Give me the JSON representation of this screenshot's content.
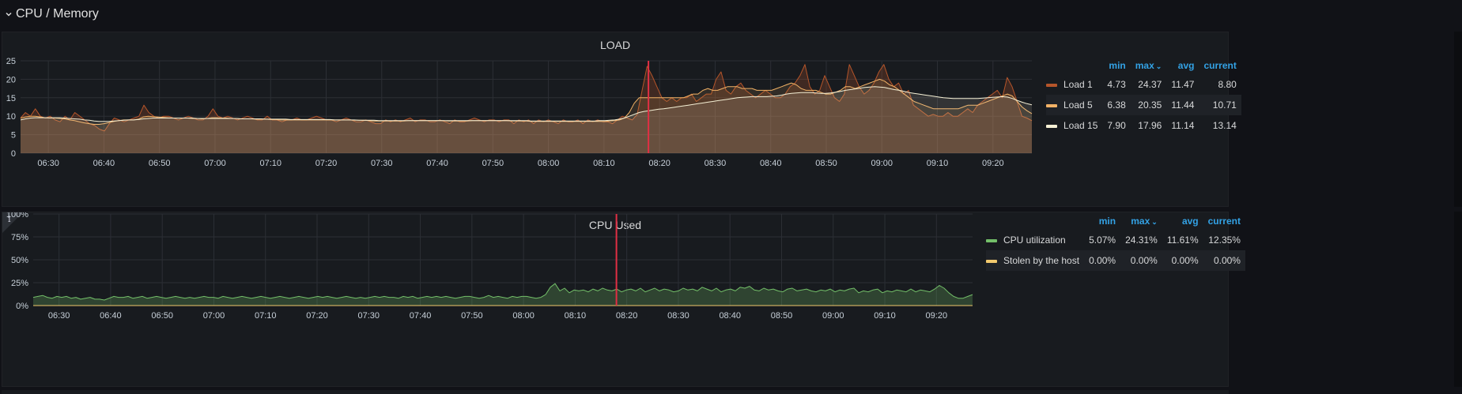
{
  "row": {
    "title": "CPU / Memory"
  },
  "panels": {
    "load": {
      "title": "LOAD",
      "y_ticks": [
        "25",
        "20",
        "15",
        "10",
        "5",
        "0"
      ],
      "x_ticks": [
        "06:30",
        "06:40",
        "06:50",
        "07:00",
        "07:10",
        "07:20",
        "07:30",
        "07:40",
        "07:50",
        "08:00",
        "08:10",
        "08:20",
        "08:30",
        "08:40",
        "08:50",
        "09:00",
        "09:10",
        "09:20"
      ],
      "legend": {
        "headers": {
          "min": "min",
          "max": "max",
          "avg": "avg",
          "current": "current"
        },
        "rows": [
          {
            "name": "Load 1",
            "color": "#b5552a",
            "min": "4.73",
            "max": "24.37",
            "avg": "11.47",
            "current": "8.80"
          },
          {
            "name": "Load 5",
            "color": "#f2b266",
            "min": "6.38",
            "max": "20.35",
            "avg": "11.44",
            "current": "10.71"
          },
          {
            "name": "Load 15",
            "color": "#f5f0d5",
            "min": "7.90",
            "max": "17.96",
            "avg": "11.14",
            "current": "13.14"
          }
        ]
      }
    },
    "cpu": {
      "title": "CPU Used",
      "info_icon": "info-icon",
      "y_ticks": [
        "100%",
        "75%",
        "50%",
        "25%",
        "0%"
      ],
      "x_ticks": [
        "06:30",
        "06:40",
        "06:50",
        "07:00",
        "07:10",
        "07:20",
        "07:30",
        "07:40",
        "07:50",
        "08:00",
        "08:10",
        "08:20",
        "08:30",
        "08:40",
        "08:50",
        "09:00",
        "09:10",
        "09:20"
      ],
      "legend": {
        "headers": {
          "min": "min",
          "max": "max",
          "avg": "avg",
          "current": "current"
        },
        "rows": [
          {
            "name": "CPU utilization",
            "color": "#73bf69",
            "min": "5.07%",
            "max": "24.31%",
            "avg": "11.61%",
            "current": "12.35%"
          },
          {
            "name": "Stolen by the host",
            "color": "#f2c96d",
            "min": "0.00%",
            "max": "0.00%",
            "avg": "0.00%",
            "current": "0.00%"
          }
        ]
      }
    }
  },
  "chart_data": [
    {
      "type": "line",
      "title": "LOAD",
      "x_start": "06:25",
      "x_end": "09:27",
      "ylim": [
        0,
        25
      ],
      "annotation_time": "08:18",
      "series": [
        {
          "name": "Load 1",
          "color": "#b5552a",
          "values": [
            9.5,
            11,
            10,
            12,
            10,
            9.5,
            10,
            9,
            8.5,
            10,
            9,
            11,
            10,
            9,
            8,
            7.5,
            6.5,
            6,
            8,
            9.5,
            9,
            8.5,
            9,
            9.5,
            10,
            13,
            11,
            10,
            9.5,
            10,
            10,
            9.5,
            9,
            9.5,
            10,
            9.5,
            9,
            9,
            10,
            12,
            10,
            9.5,
            10,
            9.5,
            9,
            9.5,
            10,
            9.5,
            9,
            9,
            10,
            9,
            9,
            8.5,
            9,
            9,
            9.5,
            9,
            9,
            9.5,
            10,
            9.5,
            9,
            9,
            8.5,
            9,
            9.5,
            9,
            8.5,
            8.5,
            9,
            8.5,
            8,
            8,
            9,
            8.5,
            9,
            8.5,
            9,
            9.5,
            8.5,
            9,
            9,
            8.5,
            8.5,
            9,
            8.5,
            8,
            9,
            8.5,
            8.5,
            9,
            9.5,
            9,
            8.5,
            9,
            9,
            8.5,
            9,
            9,
            8,
            9,
            8.5,
            9,
            8,
            9,
            8.5,
            9,
            8.5,
            8,
            9,
            8.5,
            8.5,
            9,
            8,
            9,
            8.5,
            9,
            8.5,
            8.5,
            8,
            9,
            10,
            9.5,
            9,
            10.5,
            17,
            23.5,
            21,
            18,
            15,
            14,
            15,
            14,
            15,
            15,
            16,
            14,
            15,
            16,
            16,
            20,
            22,
            17,
            16,
            18,
            19,
            17,
            16,
            15,
            16,
            17,
            16,
            15,
            15,
            16,
            18,
            19,
            21,
            24,
            18,
            16,
            17,
            21,
            18,
            15,
            14,
            16,
            24,
            21,
            18,
            16,
            17,
            19,
            22,
            24,
            20,
            18,
            19,
            16,
            17,
            13,
            12,
            11,
            10,
            10.5,
            10,
            10,
            11,
            10,
            10,
            11,
            12,
            11,
            13,
            14,
            15,
            16,
            17,
            15,
            20.5,
            18,
            14,
            10,
            9.5,
            8.8
          ]
        },
        {
          "name": "Load 5",
          "color": "#f2b266",
          "values": [
            9.5,
            9.8,
            10,
            10,
            9.8,
            9.6,
            9.5,
            9.5,
            9.4,
            9.3,
            9,
            8.8,
            8.5,
            8.2,
            8,
            7.8,
            7.8,
            8,
            8.3,
            8.6,
            8.8,
            9,
            9,
            9,
            9.2,
            9.8,
            10,
            9.9,
            9.8,
            9.7,
            9.6,
            9.5,
            9.5,
            9.5,
            9.5,
            9.4,
            9.4,
            9.3,
            9.4,
            9.6,
            9.6,
            9.5,
            9.5,
            9.4,
            9.4,
            9.3,
            9.3,
            9.3,
            9.2,
            9.2,
            9.2,
            9.1,
            9.1,
            9,
            9,
            9,
            9,
            9,
            9,
            9,
            9,
            9,
            9,
            9,
            9,
            9,
            9,
            9,
            8.9,
            8.9,
            8.9,
            8.8,
            8.7,
            8.7,
            8.7,
            8.7,
            8.7,
            8.7,
            8.7,
            8.8,
            8.8,
            8.8,
            8.8,
            8.8,
            8.8,
            8.8,
            8.8,
            8.7,
            8.7,
            8.7,
            8.7,
            8.7,
            8.8,
            8.8,
            8.8,
            8.8,
            8.8,
            8.8,
            8.8,
            8.8,
            8.7,
            8.7,
            8.7,
            8.7,
            8.6,
            8.6,
            8.6,
            8.6,
            8.6,
            8.6,
            8.6,
            8.6,
            8.6,
            8.6,
            8.6,
            8.6,
            8.6,
            8.6,
            8.6,
            8.6,
            8.7,
            8.8,
            9,
            9.5,
            11,
            13.5,
            15,
            15,
            15,
            15,
            15,
            15,
            15,
            15,
            15,
            15,
            15.5,
            16,
            16,
            17,
            17.5,
            17,
            17,
            17.5,
            18,
            18,
            18,
            17.5,
            17.5,
            17.5,
            17,
            17,
            17,
            17,
            17.5,
            18,
            18.5,
            19,
            18.5,
            17.5,
            17,
            17,
            17,
            16.5,
            16,
            16,
            16.5,
            17,
            18,
            18,
            17.5,
            18,
            18.5,
            19,
            19.5,
            20,
            19.5,
            18.5,
            18,
            17,
            16,
            15,
            14,
            13.5,
            13,
            12.5,
            12,
            12,
            12,
            12,
            12,
            12,
            12.5,
            13,
            13,
            13,
            13.5,
            14,
            14.5,
            15,
            15.5,
            16,
            15.5,
            14,
            12.5,
            11.5,
            10.7
          ]
        },
        {
          "name": "Load 15",
          "color": "#f5f0d5",
          "values": [
            9,
            9.3,
            9.5,
            9.6,
            9.6,
            9.6,
            9.6,
            9.6,
            9.6,
            9.5,
            9.4,
            9.3,
            9.2,
            9,
            8.9,
            8.7,
            8.6,
            8.6,
            8.6,
            8.7,
            8.8,
            8.9,
            9,
            9,
            9.1,
            9.3,
            9.4,
            9.5,
            9.5,
            9.5,
            9.5,
            9.5,
            9.5,
            9.5,
            9.5,
            9.5,
            9.4,
            9.4,
            9.4,
            9.4,
            9.4,
            9.4,
            9.4,
            9.4,
            9.4,
            9.3,
            9.3,
            9.3,
            9.3,
            9.3,
            9.2,
            9.2,
            9.2,
            9.2,
            9.2,
            9.1,
            9.1,
            9.1,
            9.1,
            9.1,
            9.1,
            9.1,
            9.1,
            9.1,
            9,
            9,
            9,
            9,
            9,
            8.9,
            8.9,
            8.9,
            8.9,
            8.8,
            8.8,
            8.8,
            8.8,
            8.8,
            8.8,
            8.8,
            8.8,
            8.8,
            8.8,
            8.8,
            8.8,
            8.8,
            8.8,
            8.8,
            8.8,
            8.8,
            8.8,
            8.8,
            8.8,
            8.8,
            8.8,
            8.8,
            8.8,
            8.8,
            8.8,
            8.8,
            8.8,
            8.8,
            8.8,
            8.8,
            8.7,
            8.7,
            8.7,
            8.7,
            8.7,
            8.7,
            8.7,
            8.7,
            8.7,
            8.7,
            8.7,
            8.7,
            8.7,
            8.7,
            8.8,
            8.8,
            8.9,
            9,
            9.2,
            9.5,
            10,
            10.5,
            11,
            11.3,
            11.5,
            11.7,
            11.9,
            12,
            12.2,
            12.4,
            12.6,
            12.8,
            13,
            13.2,
            13.4,
            13.6,
            13.8,
            14,
            14.2,
            14.4,
            14.6,
            14.8,
            15,
            15.1,
            15.2,
            15.3,
            15.3,
            15.3,
            15.3,
            15.4,
            15.5,
            15.7,
            16,
            16.2,
            16.3,
            16.4,
            16.4,
            16.4,
            16.3,
            16.2,
            16.2,
            16.3,
            16.5,
            16.7,
            17,
            17.2,
            17.4,
            17.6,
            17.8,
            17.9,
            18,
            17.9,
            17.8,
            17.5,
            17.2,
            17,
            16.7,
            16.4,
            16.2,
            16,
            15.8,
            15.6,
            15.4,
            15.2,
            15,
            14.9,
            14.8,
            14.8,
            14.8,
            14.8,
            14.8,
            14.8,
            14.9,
            15,
            15.1,
            15.2,
            15.3,
            15.2,
            14.8,
            14.3,
            13.8,
            13.4,
            13.1
          ]
        }
      ]
    },
    {
      "type": "line",
      "title": "CPU Used",
      "x_start": "06:25",
      "x_end": "09:27",
      "ylim": [
        0,
        100
      ],
      "annotation_time": "08:18",
      "series": [
        {
          "name": "CPU utilization",
          "color": "#73bf69",
          "values": [
            9,
            10,
            11,
            9,
            8,
            10,
            9,
            10,
            8,
            9,
            7,
            8,
            9,
            7,
            7,
            6,
            8,
            10,
            9,
            9,
            10,
            8,
            9,
            10,
            8,
            9,
            10,
            9,
            8,
            9,
            10,
            9,
            8,
            9,
            8,
            9,
            10,
            9,
            9,
            8,
            10,
            9,
            8,
            9,
            10,
            9,
            8,
            9,
            10,
            9,
            8,
            9,
            10,
            9,
            8,
            9,
            10,
            9,
            8,
            9,
            10,
            9,
            10,
            9,
            8,
            9,
            10,
            9,
            8,
            9,
            8,
            9,
            10,
            9,
            10,
            9,
            9,
            8,
            10,
            9,
            10,
            8,
            9,
            10,
            9,
            10,
            9,
            10,
            9,
            8,
            9,
            10,
            10,
            9,
            8,
            9,
            11,
            9,
            10,
            9,
            8,
            10,
            9,
            10,
            10,
            9,
            8,
            9,
            12,
            20,
            24,
            16,
            19,
            14,
            17,
            16,
            17,
            15,
            18,
            16,
            19,
            17,
            16,
            18,
            15,
            17,
            18,
            16,
            19,
            15,
            17,
            19,
            16,
            18,
            17,
            15,
            16,
            19,
            17,
            18,
            16,
            20,
            18,
            16,
            19,
            15,
            17,
            18,
            16,
            20,
            19,
            21,
            17,
            16,
            19,
            17,
            18,
            16,
            15,
            18,
            19,
            16,
            17,
            18,
            16,
            15,
            17,
            16,
            18,
            15,
            17,
            16,
            18,
            19,
            14,
            16,
            15,
            17,
            18,
            14,
            16,
            15,
            17,
            16,
            15,
            18,
            15,
            17,
            16,
            15,
            18,
            22,
            19,
            14,
            10,
            8,
            8,
            10,
            12
          ]
        },
        {
          "name": "Stolen by the host",
          "color": "#f2c96d",
          "values": [
            0,
            0,
            0,
            0,
            0,
            0,
            0,
            0,
            0,
            0
          ]
        }
      ]
    }
  ]
}
